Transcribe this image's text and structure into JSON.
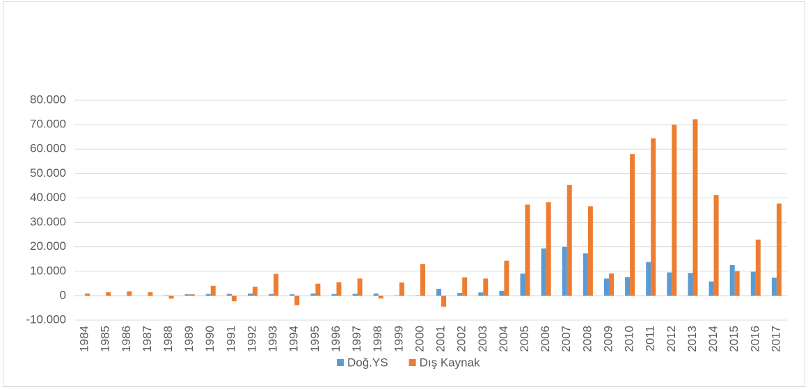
{
  "chart_data": {
    "type": "bar",
    "categories": [
      "1984",
      "1985",
      "1986",
      "1987",
      "1988",
      "1989",
      "1990",
      "1991",
      "1992",
      "1993",
      "1994",
      "1995",
      "1996",
      "1997",
      "1998",
      "1999",
      "2000",
      "2001",
      "2002",
      "2003",
      "2004",
      "2005",
      "2006",
      "2007",
      "2008",
      "2009",
      "2010",
      "2011",
      "2012",
      "2013",
      "2014",
      "2015",
      "2016",
      "2017"
    ],
    "series": [
      {
        "name": "Doğ.YS",
        "color": "#5b9bd5",
        "values": [
          0,
          0,
          0,
          0,
          100,
          600,
          700,
          800,
          900,
          700,
          600,
          900,
          700,
          800,
          900,
          100,
          100,
          2800,
          1100,
          1300,
          2000,
          9000,
          19300,
          20000,
          17300,
          7000,
          7600,
          13800,
          9500,
          9300,
          5800,
          12500,
          9800,
          7400
        ]
      },
      {
        "name": "Dış Kaynak",
        "color": "#ed7d31",
        "values": [
          900,
          1400,
          1800,
          1400,
          -1200,
          600,
          4000,
          -2300,
          3700,
          8900,
          -3900,
          4900,
          5500,
          7000,
          -1100,
          5400,
          13000,
          -4500,
          7500,
          7000,
          14300,
          37300,
          38300,
          45300,
          36600,
          9100,
          58000,
          64400,
          70000,
          72200,
          41200,
          10100,
          22900,
          37700
        ]
      }
    ],
    "ylim": [
      -10000,
      80000
    ],
    "yticks": [
      {
        "value": -10000,
        "label": "-10.000"
      },
      0,
      {
        "value": 10000,
        "label": "10.000"
      },
      {
        "value": 20000,
        "label": "20.000"
      },
      {
        "value": 30000,
        "label": "30.000"
      },
      {
        "value": 40000,
        "label": "40.000"
      },
      {
        "value": 50000,
        "label": "50.000"
      },
      {
        "value": 60000,
        "label": "60.000"
      },
      {
        "value": 70000,
        "label": "70.000"
      },
      {
        "value": 80000,
        "label": "80.000"
      }
    ],
    "grid": true,
    "legend": "bottom"
  }
}
